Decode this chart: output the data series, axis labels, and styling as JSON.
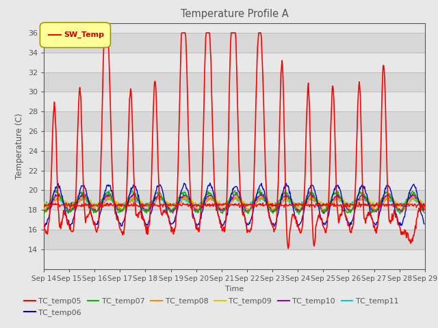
{
  "title": "Temperature Profile A",
  "xlabel": "Time",
  "ylabel": "Temperature (C)",
  "ylim": [
    12,
    37
  ],
  "yticks": [
    14,
    16,
    18,
    20,
    22,
    24,
    26,
    28,
    30,
    32,
    34,
    36
  ],
  "xtick_labels": [
    "Sep 14",
    "Sep 15",
    "Sep 16",
    "Sep 17",
    "Sep 18",
    "Sep 19",
    "Sep 20",
    "Sep 21",
    "Sep 22",
    "Sep 23",
    "Sep 24",
    "Sep 25",
    "Sep 26",
    "Sep 27",
    "Sep 28",
    "Sep 29"
  ],
  "series_colors": {
    "SW_Temp": "#ff0000",
    "TC_temp05": "#ff0000",
    "TC_temp06": "#0000cc",
    "TC_temp07": "#00bb00",
    "TC_temp08": "#ff8800",
    "TC_temp09": "#cccc00",
    "TC_temp10": "#9900aa",
    "TC_temp11": "#00cccc"
  },
  "background_color": "#e8e8e8",
  "band_colors": [
    "#d8d8d8",
    "#e8e8e8"
  ],
  "grid_color": "#bbbbbb",
  "title_color": "#555555",
  "axis_color": "#555555",
  "legend_box_color": "#ffff99",
  "legend_box_edge": "#999900",
  "sw_label_color": "#cc0000"
}
